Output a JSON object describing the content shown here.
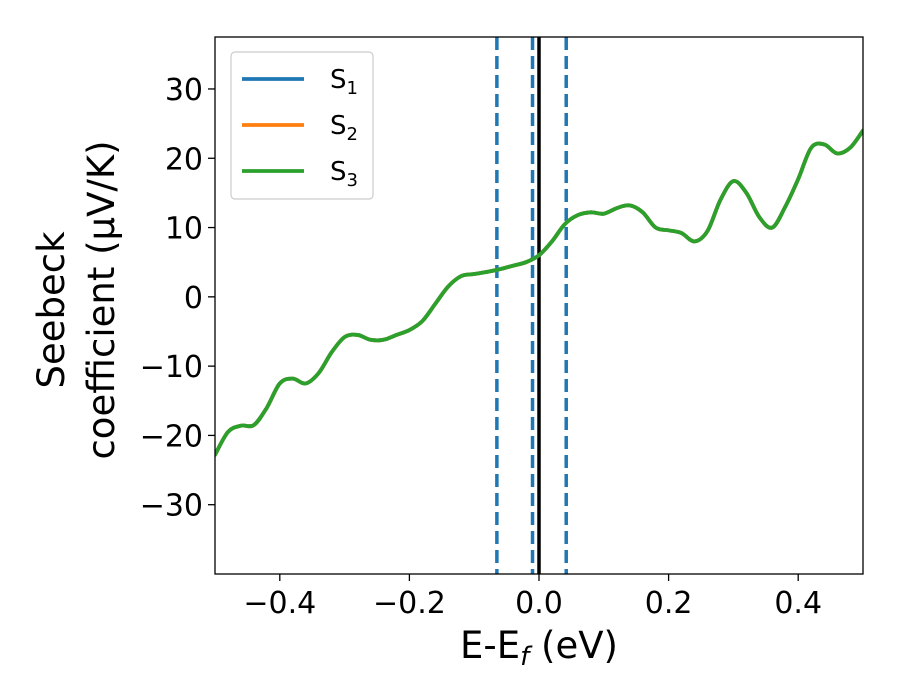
{
  "chart_data": {
    "type": "line",
    "xlabel": "E-E",
    "xlabel_sub": "f",
    "xlabel_unit": " (eV)",
    "ylabel_line1": "Seebeck",
    "ylabel_line2": "coefficient  (μV/K)",
    "xlim": [
      -0.5,
      0.5
    ],
    "ylim": [
      -40,
      37.5
    ],
    "x_ticks": [
      -0.4,
      -0.2,
      0.0,
      0.2,
      0.4
    ],
    "x_tick_labels": [
      "−0.4",
      "−0.2",
      "0.0",
      "0.2",
      "0.4"
    ],
    "y_ticks": [
      -30,
      -20,
      -10,
      0,
      10,
      20,
      30
    ],
    "y_tick_labels": [
      "−30",
      "−20",
      "−10",
      "0",
      "10",
      "20",
      "30"
    ],
    "grid": false,
    "legend_position": "top-left",
    "colors": {
      "S1": "#1f77b4",
      "S2": "#ff7f0e",
      "S3": "#2ca02c",
      "fermi_line": "#000000",
      "dashed_lines": "#1f77b4"
    },
    "vertical_lines": {
      "solid": [
        0.0
      ],
      "dashed": [
        -0.065,
        -0.01,
        0.042
      ]
    },
    "x": [
      -0.5,
      -0.48,
      -0.46,
      -0.44,
      -0.42,
      -0.4,
      -0.38,
      -0.36,
      -0.34,
      -0.32,
      -0.3,
      -0.28,
      -0.26,
      -0.24,
      -0.22,
      -0.2,
      -0.18,
      -0.16,
      -0.14,
      -0.12,
      -0.1,
      -0.08,
      -0.06,
      -0.04,
      -0.02,
      0.0,
      0.02,
      0.04,
      0.06,
      0.08,
      0.1,
      0.12,
      0.14,
      0.16,
      0.18,
      0.2,
      0.22,
      0.24,
      0.26,
      0.28,
      0.3,
      0.32,
      0.34,
      0.36,
      0.38,
      0.4,
      0.42,
      0.44,
      0.46,
      0.48,
      0.5
    ],
    "series": [
      {
        "name": "S",
        "sub": "1",
        "values": [
          -22.8,
          -19.5,
          -18.6,
          -18.5,
          -16.0,
          -12.5,
          -11.8,
          -12.5,
          -11.0,
          -8.0,
          -5.8,
          -5.5,
          -6.2,
          -6.2,
          -5.5,
          -4.8,
          -3.5,
          -1.0,
          1.5,
          3.0,
          3.3,
          3.6,
          4.0,
          4.5,
          5.0,
          6.0,
          8.0,
          10.5,
          11.8,
          12.2,
          12.0,
          12.8,
          13.2,
          12.2,
          10.0,
          9.6,
          9.2,
          8.0,
          9.5,
          14.0,
          16.7,
          15.0,
          11.5,
          10.0,
          13.0,
          17.0,
          21.5,
          22.0,
          20.7,
          21.5,
          24.0
        ]
      },
      {
        "name": "S",
        "sub": "2",
        "values": [
          -22.8,
          -19.5,
          -18.6,
          -18.5,
          -16.0,
          -12.5,
          -11.8,
          -12.5,
          -11.0,
          -8.0,
          -5.8,
          -5.5,
          -6.2,
          -6.2,
          -5.5,
          -4.8,
          -3.5,
          -1.0,
          1.5,
          3.0,
          3.3,
          3.6,
          4.0,
          4.5,
          5.0,
          6.0,
          8.0,
          10.5,
          11.8,
          12.2,
          12.0,
          12.8,
          13.2,
          12.2,
          10.0,
          9.6,
          9.2,
          8.0,
          9.5,
          14.0,
          16.7,
          15.0,
          11.5,
          10.0,
          13.0,
          17.0,
          21.5,
          22.0,
          20.7,
          21.5,
          24.0
        ]
      },
      {
        "name": "S",
        "sub": "3",
        "values": [
          -22.8,
          -19.5,
          -18.6,
          -18.5,
          -16.0,
          -12.5,
          -11.8,
          -12.5,
          -11.0,
          -8.0,
          -5.8,
          -5.5,
          -6.2,
          -6.2,
          -5.5,
          -4.8,
          -3.5,
          -1.0,
          1.5,
          3.0,
          3.3,
          3.6,
          4.0,
          4.5,
          5.0,
          6.0,
          8.0,
          10.5,
          11.8,
          12.2,
          12.0,
          12.8,
          13.2,
          12.2,
          10.0,
          9.6,
          9.2,
          8.0,
          9.5,
          14.0,
          16.7,
          15.0,
          11.5,
          10.0,
          13.0,
          17.0,
          21.5,
          22.0,
          20.7,
          21.5,
          24.0
        ]
      }
    ]
  }
}
